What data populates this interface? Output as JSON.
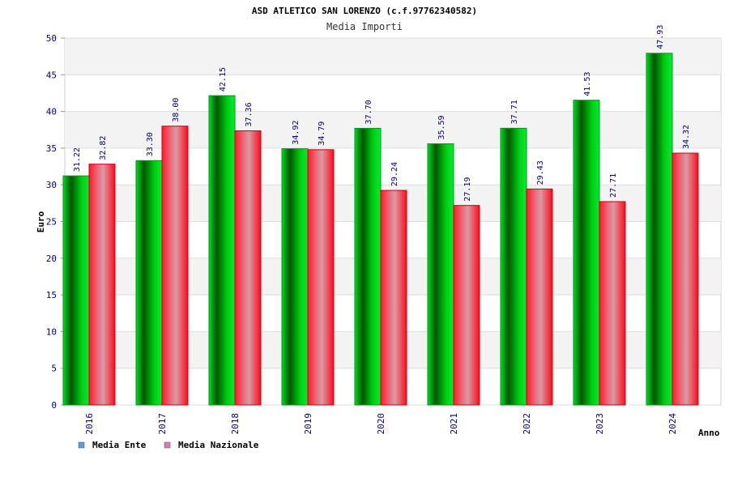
{
  "chart_data": {
    "type": "bar",
    "title": "ASD ATLETICO SAN LORENZO (c.f.97762340582)",
    "subtitle": "Media Importi",
    "xlabel": "Anno",
    "ylabel": "Euro",
    "ylim": [
      0,
      50
    ],
    "yticks": [
      0,
      5,
      10,
      15,
      20,
      25,
      30,
      35,
      40,
      45,
      50
    ],
    "grid": "horizontal, alternating bands",
    "legend_position": "bottom-left",
    "categories": [
      "2016",
      "2017",
      "2018",
      "2019",
      "2020",
      "2021",
      "2022",
      "2023",
      "2024"
    ],
    "series": [
      {
        "name": "Media Ente",
        "legend_color": "#5f9be0",
        "bar_color": "#00cc22",
        "values": [
          31.22,
          33.3,
          42.15,
          34.92,
          37.7,
          35.59,
          37.71,
          41.53,
          47.93
        ],
        "labels": [
          "31.22",
          "33.30",
          "42.15",
          "34.92",
          "37.70",
          "35.59",
          "37.71",
          "41.53",
          "47.93"
        ]
      },
      {
        "name": "Media Nazionale",
        "legend_color": "#d77fb2",
        "bar_color": "#ff1a2a",
        "values": [
          32.82,
          38.0,
          37.36,
          34.79,
          29.24,
          27.19,
          29.43,
          27.71,
          34.32
        ],
        "labels": [
          "32.82",
          "38.00",
          "37.36",
          "34.79",
          "29.24",
          "27.19",
          "29.43",
          "27.71",
          "34.32"
        ]
      }
    ]
  }
}
